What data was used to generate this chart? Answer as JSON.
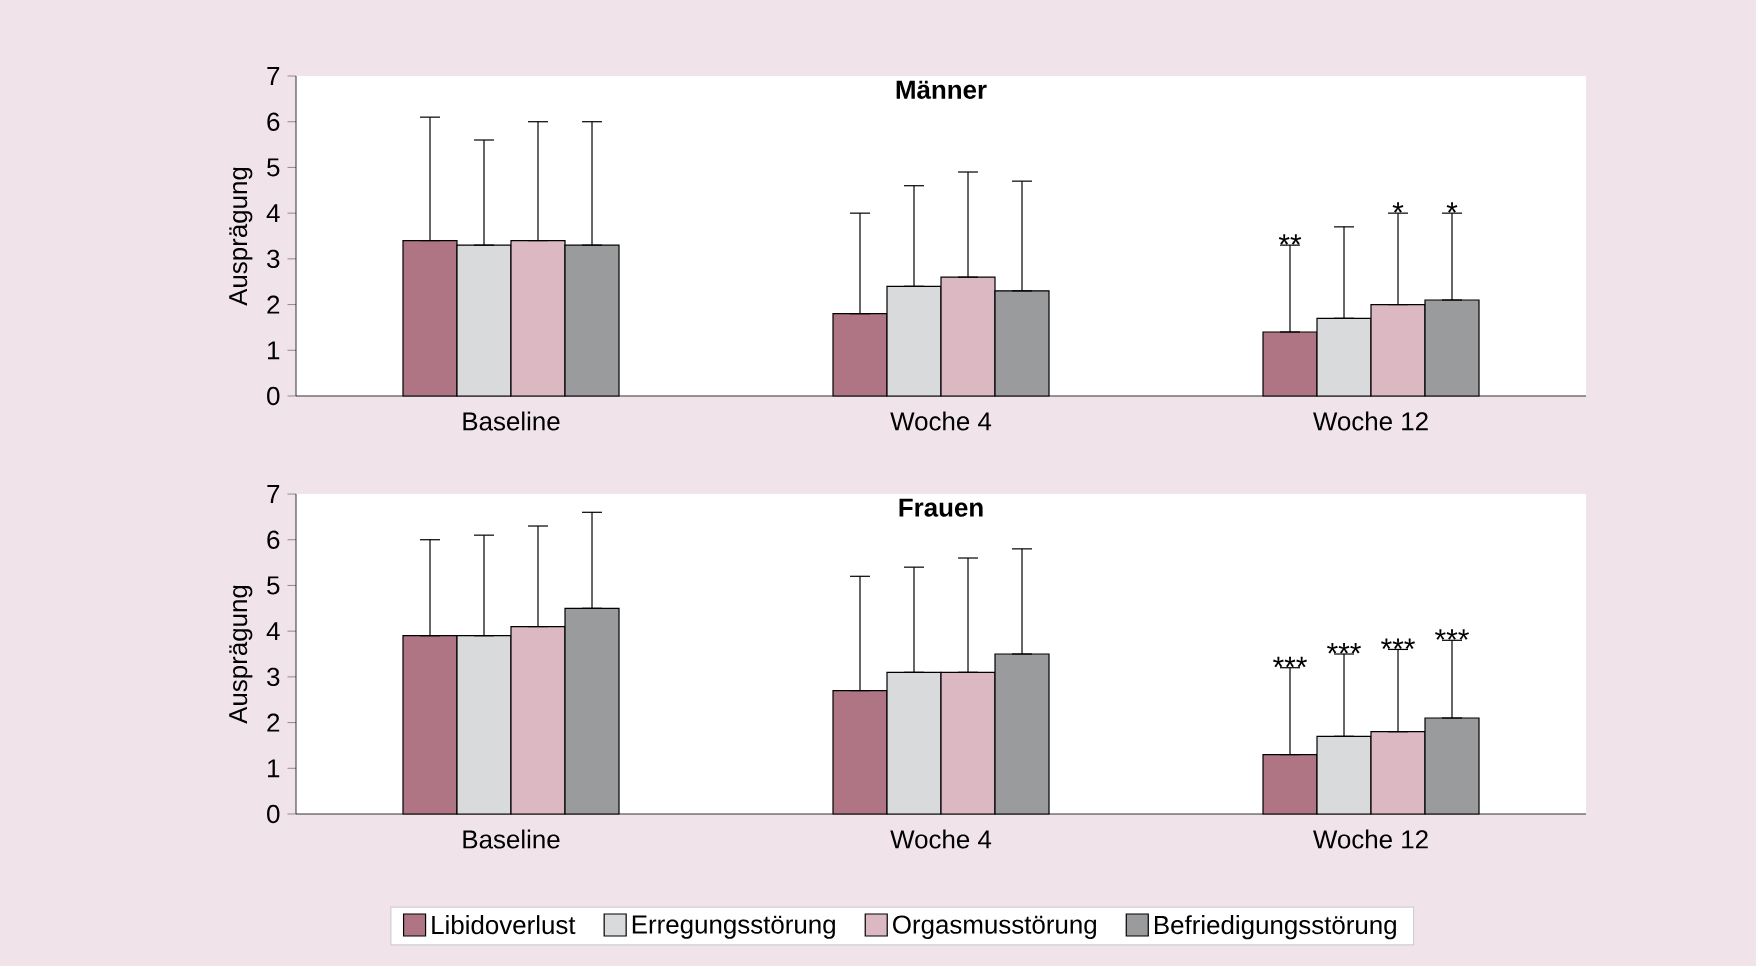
{
  "chart_data": [
    {
      "type": "bar",
      "title": "Männer",
      "ylabel": "Ausprägung",
      "categories": [
        "Baseline",
        "Woche 4",
        "Woche 12"
      ],
      "ylim": [
        0,
        7
      ],
      "yticks": [
        0,
        1,
        2,
        3,
        4,
        5,
        6,
        7
      ],
      "series": [
        {
          "color": "#b07585",
          "values": [
            3.4,
            1.8,
            1.4
          ],
          "errors": [
            [
              3.4,
              6.1
            ],
            [
              1.8,
              4.0
            ],
            [
              1.4,
              3.3
            ]
          ],
          "value_labels": [
            null,
            null,
            "**"
          ]
        },
        {
          "color": "#d9dadc",
          "values": [
            3.3,
            2.4,
            1.7
          ],
          "errors": [
            [
              3.3,
              5.6
            ],
            [
              2.4,
              4.6
            ],
            [
              1.7,
              3.7
            ]
          ]
        },
        {
          "color": "#dbb8c2",
          "values": [
            3.4,
            2.6,
            2.0
          ],
          "errors": [
            [
              3.4,
              6.0
            ],
            [
              2.6,
              4.9
            ],
            [
              2.0,
              4.0
            ]
          ],
          "value_labels": [
            null,
            null,
            "*"
          ]
        },
        {
          "color": "#9a9b9d",
          "values": [
            3.3,
            2.3,
            2.1
          ],
          "errors": [
            [
              3.3,
              6.0
            ],
            [
              2.3,
              4.7
            ],
            [
              2.1,
              4.0
            ]
          ],
          "value_labels": [
            null,
            null,
            "*"
          ]
        }
      ]
    },
    {
      "type": "bar",
      "title": "Frauen",
      "ylabel": "Ausprägung",
      "categories": [
        "Baseline",
        "Woche 4",
        "Woche 12"
      ],
      "ylim": [
        0,
        7
      ],
      "yticks": [
        0,
        1,
        2,
        3,
        4,
        5,
        6,
        7
      ],
      "legend": "bottom",
      "series": [
        {
          "name": "Libidoverlust",
          "color": "#b07585",
          "values": [
            3.9,
            2.7,
            1.3
          ],
          "errors": [
            [
              3.9,
              6.0
            ],
            [
              2.7,
              5.2
            ],
            [
              1.3,
              3.2
            ]
          ],
          "value_labels": [
            null,
            null,
            "***"
          ]
        },
        {
          "name": "Erregungsstörung",
          "color": "#d9dadc",
          "values": [
            3.9,
            3.1,
            1.7
          ],
          "errors": [
            [
              3.9,
              6.1
            ],
            [
              3.1,
              5.4
            ],
            [
              1.7,
              3.5
            ]
          ],
          "value_labels": [
            null,
            null,
            "***"
          ]
        },
        {
          "name": "Orgasmusstörung",
          "color": "#dbb8c2",
          "values": [
            4.1,
            3.1,
            1.8
          ],
          "errors": [
            [
              4.1,
              6.3
            ],
            [
              3.1,
              5.6
            ],
            [
              1.8,
              3.6
            ]
          ],
          "value_labels": [
            null,
            null,
            "***"
          ]
        },
        {
          "name": "Befriedigungsstörung",
          "color": "#9a9b9d",
          "values": [
            4.5,
            3.5,
            2.1
          ],
          "errors": [
            [
              4.5,
              6.6
            ],
            [
              3.5,
              5.8
            ],
            [
              2.1,
              3.8
            ]
          ],
          "value_labels": [
            null,
            null,
            "***"
          ]
        }
      ]
    }
  ]
}
